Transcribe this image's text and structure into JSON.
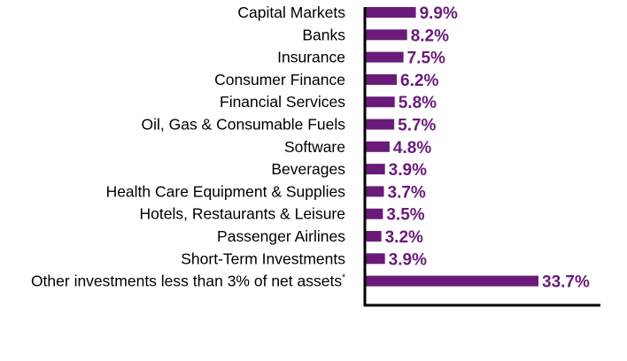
{
  "chart_data": {
    "type": "bar",
    "orientation": "horizontal",
    "categories": [
      "Capital Markets",
      "Banks",
      "Insurance",
      "Consumer Finance",
      "Financial Services",
      "Oil, Gas & Consumable Fuels",
      "Software",
      "Beverages",
      "Health Care Equipment & Supplies",
      "Hotels, Restaurants & Leisure",
      "Passenger Airlines",
      "Short-Term Investments",
      "Other investments less than 3% of net assets"
    ],
    "footnote_marks": [
      "",
      "",
      "",
      "",
      "",
      "",
      "",
      "",
      "",
      "",
      "",
      "",
      "*"
    ],
    "values": [
      9.9,
      8.2,
      7.5,
      6.2,
      5.8,
      5.7,
      4.8,
      3.9,
      3.7,
      3.5,
      3.2,
      3.9,
      33.7
    ],
    "value_labels": [
      "9.9%",
      "8.2%",
      "7.5%",
      "6.2%",
      "5.8%",
      "5.7%",
      "4.8%",
      "3.9%",
      "3.7%",
      "3.5%",
      "3.2%",
      "3.9%",
      "33.7%"
    ],
    "xlim": [
      0,
      33.7
    ],
    "grid": false,
    "legend": "none",
    "colors": {
      "bar": "#6a1b7a",
      "value_label": "#6a1b7a",
      "axis": "#000000"
    }
  }
}
